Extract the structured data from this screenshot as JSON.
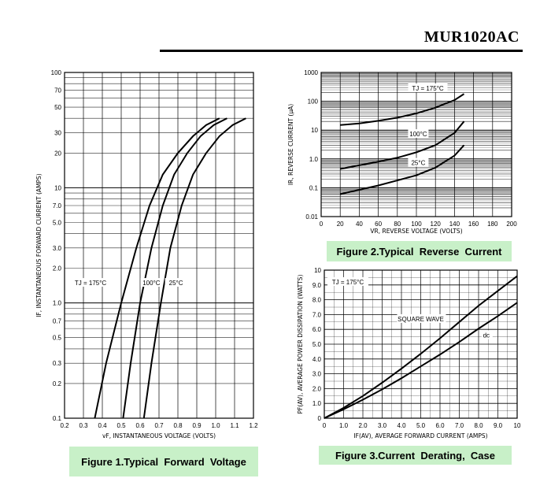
{
  "header": {
    "part_number": "MUR1020AC"
  },
  "captions": {
    "fig1": "Figure 1.Typical  Forward  Voltage",
    "fig2": "Figure 2.Typical  Reverse  Current",
    "fig3": "Figure 3.Current  Derating,  Case"
  },
  "chart_data": [
    {
      "type": "line",
      "ylabel": "IF, INSTANTANEOUS FORWARD CURRENT (AMPS)",
      "xlabel": "vF, INSTANTANEOUS VOLTAGE (VOLTS)",
      "x_scale": "linear",
      "y_scale": "log",
      "xlim": [
        0.2,
        1.2
      ],
      "ylim": [
        0.1,
        100
      ],
      "x_ticks": [
        "0.2",
        "0.3",
        "0.4",
        "0.5",
        "0.6",
        "0.7",
        "0.8",
        "0.9",
        "1.0",
        "1.1",
        "1.2"
      ],
      "y_ticks": [
        "100",
        "70",
        "50",
        "30",
        "20",
        "10",
        "7.0",
        "5.0",
        "3.0",
        "2.0",
        "1.0",
        "0.7",
        "0.5",
        "0.3",
        "0.2",
        "0.1"
      ],
      "grid": true,
      "series": [
        {
          "name": "TJ = 175°C",
          "x": [
            0.36,
            0.42,
            0.5,
            0.58,
            0.65,
            0.72,
            0.8,
            0.88,
            0.95,
            1.02
          ],
          "y": [
            0.1,
            0.3,
            1,
            3,
            7,
            13,
            20,
            28,
            35,
            40
          ]
        },
        {
          "name": "100°C",
          "x": [
            0.51,
            0.55,
            0.6,
            0.66,
            0.72,
            0.78,
            0.85,
            0.92,
            0.99,
            1.06
          ],
          "y": [
            0.1,
            0.3,
            1,
            3,
            7,
            13,
            20,
            28,
            35,
            40
          ]
        },
        {
          "name": "25°C",
          "x": [
            0.62,
            0.66,
            0.71,
            0.76,
            0.82,
            0.88,
            0.95,
            1.02,
            1.09,
            1.16
          ],
          "y": [
            0.1,
            0.3,
            1,
            3,
            7,
            13,
            20,
            28,
            35,
            40
          ]
        }
      ]
    },
    {
      "type": "line",
      "ylabel": "IR, REVERSE CURRENT (µA)",
      "xlabel": "VR, REVERSE VOLTAGE (VOLTS)",
      "x_scale": "linear",
      "y_scale": "log",
      "xlim": [
        0,
        200
      ],
      "ylim": [
        0.01,
        1000
      ],
      "x_ticks": [
        "0",
        "20",
        "40",
        "60",
        "80",
        "100",
        "120",
        "140",
        "160",
        "180",
        "200"
      ],
      "y_ticks": [
        "1000",
        "100",
        "10",
        "1.0",
        "0.1",
        "0.01"
      ],
      "grid": true,
      "series": [
        {
          "name": "TJ = 175°C",
          "x": [
            20,
            40,
            60,
            80,
            100,
            120,
            140,
            150
          ],
          "y": [
            15,
            17,
            21,
            27,
            38,
            60,
            110,
            180
          ]
        },
        {
          "name": "100°C",
          "x": [
            20,
            40,
            60,
            80,
            100,
            120,
            140,
            150
          ],
          "y": [
            0.45,
            0.6,
            0.8,
            1.1,
            1.7,
            3,
            8,
            20
          ]
        },
        {
          "name": "25°C",
          "x": [
            20,
            40,
            60,
            80,
            100,
            120,
            140,
            150
          ],
          "y": [
            0.06,
            0.085,
            0.12,
            0.18,
            0.27,
            0.5,
            1.3,
            3
          ]
        }
      ]
    },
    {
      "type": "line",
      "ylabel": "PF(AV), AVERAGE POWER DISSIPATION (WATTS)",
      "xlabel": "IF(AV), AVERAGE FORWARD CURRENT (AMPS)",
      "xlim": [
        0,
        10
      ],
      "ylim": [
        0,
        10
      ],
      "x_ticks": [
        "0",
        "1.0",
        "2.0",
        "3.0",
        "4.0",
        "5.0",
        "6.0",
        "7.0",
        "8.0",
        "9.0",
        "10"
      ],
      "y_ticks": [
        "10",
        "9.0",
        "8.0",
        "7.0",
        "6.0",
        "5.0",
        "4.0",
        "3.0",
        "2.0",
        "1.0",
        "0"
      ],
      "grid": true,
      "annotation": "TJ = 175°C",
      "series": [
        {
          "name": "SQUARE WAVE",
          "x": [
            0,
            1,
            2,
            3,
            4,
            5,
            6,
            7,
            8,
            9,
            10
          ],
          "y": [
            0,
            0.7,
            1.5,
            2.4,
            3.35,
            4.35,
            5.4,
            6.5,
            7.6,
            8.6,
            9.6
          ]
        },
        {
          "name": "dc",
          "x": [
            0,
            1,
            2,
            3,
            4,
            5,
            6,
            7,
            8,
            9,
            10
          ],
          "y": [
            0,
            0.6,
            1.25,
            1.95,
            2.7,
            3.5,
            4.3,
            5.15,
            6.05,
            6.9,
            7.8
          ]
        }
      ]
    }
  ]
}
